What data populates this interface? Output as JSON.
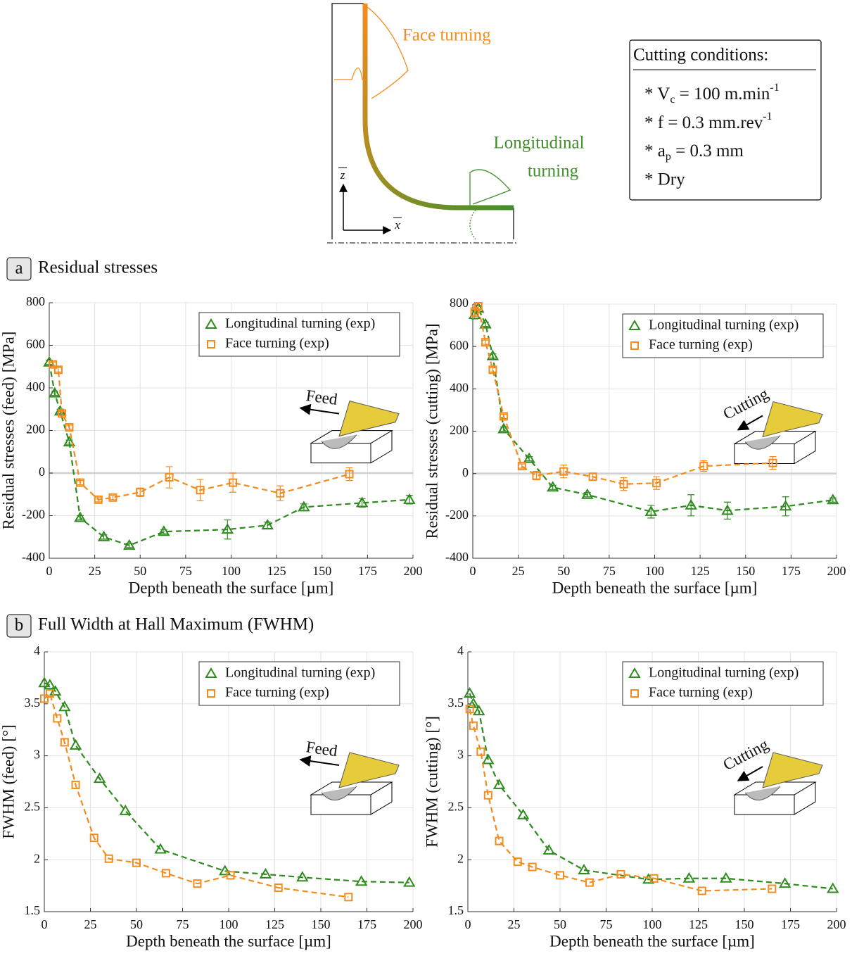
{
  "diagram": {
    "face_label": "Face turning",
    "long_label": [
      "Longitudinal",
      "turning"
    ],
    "z_axis": "z",
    "x_axis": "x"
  },
  "conditions": {
    "title": "Cutting conditions:",
    "lines": [
      [
        "* V",
        "c",
        " = 100 m.min",
        "-1"
      ],
      [
        "* f = 0.3 mm.rev",
        "-1"
      ],
      [
        "* a",
        "p",
        " = 0.3 mm"
      ],
      [
        "* Dry"
      ]
    ]
  },
  "sections": [
    {
      "letter": "a",
      "title": "Residual stresses"
    },
    {
      "letter": "b",
      "title": "Full Width at Hall Maximum (FWHM)"
    }
  ],
  "chart_data": [
    {
      "type": "line",
      "xlabel": "Depth beneath the surface [µm]",
      "ylabel": "Residual stresses (feed) [MPa]",
      "inset_label": "Feed",
      "xlim": [
        0,
        200
      ],
      "ylim": [
        -400,
        800
      ],
      "xticks": [
        0,
        25,
        50,
        75,
        100,
        125,
        150,
        175,
        200
      ],
      "yticks": [
        -400,
        -200,
        0,
        200,
        400,
        600,
        800
      ],
      "grid": true,
      "zero_line": true,
      "legend": "upper right",
      "line_style": "dashed",
      "series": [
        {
          "name": "Longitudinal turning (exp)",
          "color": "#2e8b1e",
          "marker": "triangle",
          "x": [
            0,
            3,
            6,
            11,
            17,
            30,
            44,
            63,
            98,
            120,
            140,
            172,
            198
          ],
          "values": [
            520,
            375,
            290,
            145,
            -210,
            -300,
            -340,
            -275,
            -265,
            -245,
            -160,
            -140,
            -125
          ],
          "errors": [
            10,
            10,
            10,
            10,
            10,
            10,
            10,
            10,
            45,
            15,
            15,
            20,
            20
          ]
        },
        {
          "name": "Face turning (exp)",
          "color": "#f28c1f",
          "marker": "square",
          "x": [
            2,
            5,
            7,
            11,
            17,
            27,
            35,
            50,
            66,
            83,
            101,
            127,
            165
          ],
          "values": [
            510,
            485,
            280,
            215,
            -45,
            -125,
            -115,
            -90,
            -20,
            -80,
            -45,
            -95,
            -5
          ],
          "errors": [
            10,
            10,
            10,
            10,
            10,
            10,
            10,
            20,
            50,
            50,
            45,
            35,
            30
          ]
        }
      ]
    },
    {
      "type": "line",
      "xlabel": "Depth beneath the surface [µm]",
      "ylabel": "Residual stresses (cutting) [MPa]",
      "inset_label": "Cutting",
      "xlim": [
        0,
        200
      ],
      "ylim": [
        -400,
        800
      ],
      "xticks": [
        0,
        25,
        50,
        75,
        100,
        125,
        150,
        175,
        200
      ],
      "yticks": [
        -400,
        -200,
        0,
        200,
        400,
        600,
        800
      ],
      "grid": true,
      "zero_line": true,
      "legend": "upper right",
      "line_style": "dashed",
      "series": [
        {
          "name": "Longitudinal turning (exp)",
          "color": "#2e8b1e",
          "marker": "triangle",
          "x": [
            1,
            3,
            7,
            11,
            17,
            31,
            44,
            63,
            98,
            120,
            140,
            172,
            198
          ],
          "values": [
            750,
            780,
            705,
            555,
            210,
            70,
            -65,
            -100,
            -180,
            -150,
            -175,
            -155,
            -125
          ],
          "errors": [
            20,
            15,
            10,
            10,
            10,
            10,
            10,
            10,
            30,
            50,
            40,
            45,
            10
          ]
        },
        {
          "name": "Face turning (exp)",
          "color": "#f28c1f",
          "marker": "square",
          "x": [
            1,
            3,
            7,
            11,
            17,
            27,
            35,
            50,
            66,
            83,
            101,
            127,
            165
          ],
          "values": [
            760,
            790,
            620,
            490,
            270,
            35,
            -10,
            10,
            -15,
            -50,
            -45,
            35,
            50
          ],
          "errors": [
            25,
            15,
            10,
            10,
            10,
            10,
            20,
            30,
            15,
            30,
            30,
            25,
            30
          ]
        }
      ]
    },
    {
      "type": "line",
      "xlabel": "Depth beneath the surface [µm]",
      "ylabel": "FWHM (feed) [°]",
      "inset_label": "Feed",
      "xlim": [
        0,
        200
      ],
      "ylim": [
        1.5,
        4
      ],
      "xticks": [
        0,
        25,
        50,
        75,
        100,
        125,
        150,
        175,
        200
      ],
      "yticks": [
        1.5,
        2,
        2.5,
        3,
        3.5,
        4
      ],
      "grid": true,
      "legend": "upper right",
      "line_style": "dashed",
      "series": [
        {
          "name": "Longitudinal turning (exp)",
          "color": "#2e8b1e",
          "marker": "triangle",
          "x": [
            0,
            3,
            6,
            11,
            17,
            30,
            44,
            63,
            98,
            120,
            140,
            172,
            198
          ],
          "values": [
            3.7,
            3.68,
            3.62,
            3.47,
            3.1,
            2.78,
            2.47,
            2.1,
            1.89,
            1.86,
            1.83,
            1.79,
            1.78
          ]
        },
        {
          "name": "Face turning (exp)",
          "color": "#f28c1f",
          "marker": "square",
          "x": [
            0,
            3,
            7,
            11,
            17,
            27,
            35,
            50,
            66,
            83,
            101,
            127,
            165
          ],
          "values": [
            3.55,
            3.6,
            3.36,
            3.13,
            2.72,
            2.21,
            2.01,
            1.97,
            1.87,
            1.77,
            1.85,
            1.73,
            1.64
          ]
        }
      ]
    },
    {
      "type": "line",
      "xlabel": "Depth beneath the surface [µm]",
      "ylabel": "FWHM (cutting) [°]",
      "inset_label": "Cutting",
      "xlim": [
        0,
        200
      ],
      "ylim": [
        1.5,
        4
      ],
      "xticks": [
        0,
        25,
        50,
        75,
        100,
        125,
        150,
        175,
        200
      ],
      "yticks": [
        1.5,
        2,
        2.5,
        3,
        3.5,
        4
      ],
      "grid": true,
      "legend": "upper right",
      "line_style": "dashed",
      "series": [
        {
          "name": "Longitudinal turning (exp)",
          "color": "#2e8b1e",
          "marker": "triangle",
          "x": [
            1,
            3,
            6,
            11,
            17,
            30,
            44,
            63,
            98,
            120,
            140,
            172,
            198
          ],
          "values": [
            3.6,
            3.5,
            3.43,
            2.96,
            2.72,
            2.43,
            2.09,
            1.9,
            1.81,
            1.82,
            1.82,
            1.77,
            1.72
          ]
        },
        {
          "name": "Face turning (exp)",
          "color": "#f28c1f",
          "marker": "square",
          "x": [
            1,
            3,
            7,
            11,
            17,
            27,
            35,
            50,
            66,
            83,
            101,
            127,
            165
          ],
          "values": [
            3.45,
            3.29,
            3.04,
            2.62,
            2.18,
            1.98,
            1.93,
            1.85,
            1.78,
            1.86,
            1.82,
            1.7,
            1.72
          ]
        }
      ]
    }
  ]
}
